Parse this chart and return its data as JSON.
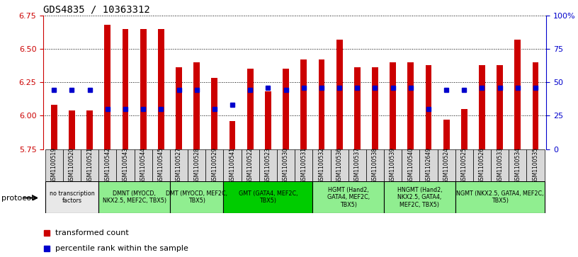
{
  "title": "GDS4835 / 10363312",
  "samples": [
    "GSM1100519",
    "GSM1100520",
    "GSM1100521",
    "GSM1100542",
    "GSM1100543",
    "GSM1100544",
    "GSM1100545",
    "GSM1100527",
    "GSM1100528",
    "GSM1100529",
    "GSM1100541",
    "GSM1100522",
    "GSM1100523",
    "GSM1100530",
    "GSM1100531",
    "GSM1100532",
    "GSM1100536",
    "GSM1100537",
    "GSM1100538",
    "GSM1100539",
    "GSM1100540",
    "GSM1102649",
    "GSM1100524",
    "GSM1100525",
    "GSM1100526",
    "GSM1100533",
    "GSM1100534",
    "GSM1100535"
  ],
  "bar_values": [
    6.08,
    6.04,
    6.04,
    6.68,
    6.65,
    6.65,
    6.65,
    6.36,
    6.4,
    6.28,
    5.96,
    6.35,
    6.18,
    6.35,
    6.42,
    6.42,
    6.57,
    6.36,
    6.36,
    6.4,
    6.4,
    6.38,
    5.97,
    6.05,
    6.38,
    6.38,
    6.57,
    6.4
  ],
  "percentile_pcts": [
    44,
    44,
    44,
    30,
    30,
    30,
    30,
    44,
    44,
    30,
    33,
    44,
    46,
    44,
    46,
    46,
    46,
    46,
    46,
    46,
    46,
    30,
    44,
    44,
    46,
    46,
    46,
    46
  ],
  "bar_color": "#cc0000",
  "percentile_color": "#0000cc",
  "ymin": 5.75,
  "ymax": 6.75,
  "y2min": 0,
  "y2max": 100,
  "yticks": [
    5.75,
    6.0,
    6.25,
    6.5,
    6.75
  ],
  "y2ticks": [
    0,
    25,
    50,
    75,
    100
  ],
  "protocol_groups": [
    {
      "label": "no transcription\nfactors",
      "count": 3,
      "color": "#e8e8e8"
    },
    {
      "label": "DMNT (MYOCD,\nNKX2.5, MEF2C, TBX5)",
      "count": 4,
      "color": "#90ee90"
    },
    {
      "label": "DMT (MYOCD, MEF2C,\nTBX5)",
      "count": 3,
      "color": "#90ee90"
    },
    {
      "label": "GMT (GATA4, MEF2C,\nTBX5)",
      "count": 5,
      "color": "#00cc00"
    },
    {
      "label": "HGMT (Hand2,\nGATA4, MEF2C,\nTBX5)",
      "count": 4,
      "color": "#90ee90"
    },
    {
      "label": "HNGMT (Hand2,\nNKX2.5, GATA4,\nMEF2C, TBX5)",
      "count": 4,
      "color": "#90ee90"
    },
    {
      "label": "NGMT (NKX2.5, GATA4, MEF2C,\nTBX5)",
      "count": 5,
      "color": "#90ee90"
    }
  ],
  "bar_bottom": 5.75,
  "y_axis_color": "#cc0000",
  "y2_axis_color": "#0000cc",
  "bar_width": 0.35
}
